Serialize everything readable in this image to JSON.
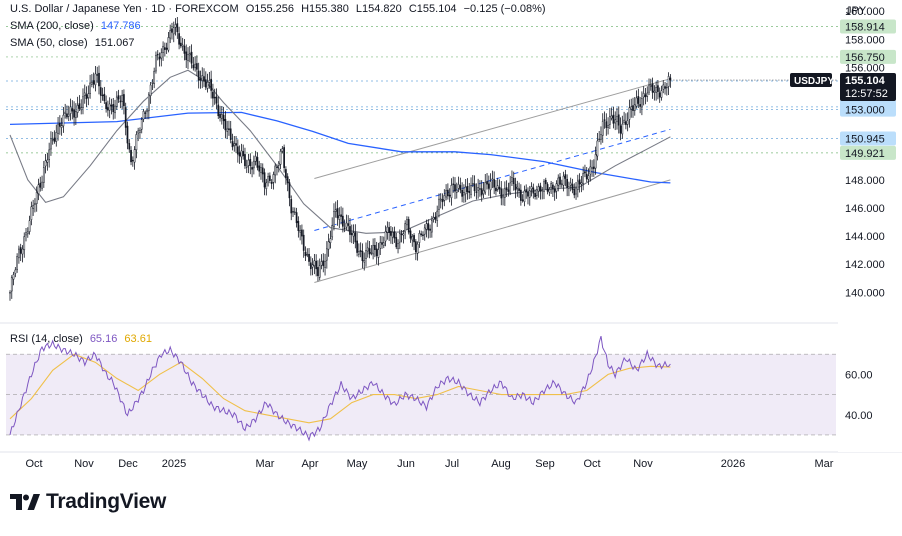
{
  "header": {
    "symbol_title": "U.S. Dollar / Japanese Yen · 1D · FOREXCOM",
    "ohlc": {
      "o": "O155.256",
      "h": "H155.380",
      "l": "L154.820",
      "c": "C155.104",
      "chg": "−0.125 (−0.08%)"
    },
    "sma200_label": "SMA (200, close)",
    "sma200_value": "147.786",
    "sma50_label": "SMA (50, close)",
    "sma50_value": "151.067",
    "currency": "JPY"
  },
  "price_tag": {
    "symbol": "USDJPY",
    "value": "155.104",
    "countdown": "12:57:52"
  },
  "rsi_header": {
    "label": "RSI (14, close)",
    "value": "65.16",
    "ma_value": "63.61"
  },
  "brand": {
    "name": "TradingView"
  },
  "colors": {
    "candle": "#131722",
    "sma200": "#2962ff",
    "sma50": "#787b86",
    "rsi": "#7e57c2",
    "rsi_ma": "#f0c04a",
    "rsi_band": "#ede7f6",
    "level_green": "#c8e6c9",
    "level_blue": "#bbdefb",
    "tag_dark": "#131722"
  },
  "chart_data": [
    {
      "type": "candlestick",
      "title": "U.S. Dollar / Japanese Yen · 1D · FOREXCOM",
      "ylim": [
        138.6,
        160.8
      ],
      "y_ticks": [
        140,
        142,
        144,
        146,
        148
      ],
      "x_ticks": [
        "Oct",
        "Nov",
        "Dec",
        "2025",
        "Mar",
        "Apr",
        "May",
        "Jun",
        "Jul",
        "Aug",
        "Sep",
        "Oct",
        "Nov",
        "2026",
        "Mar"
      ],
      "close_path": [
        [
          0,
          140.0
        ],
        [
          5,
          142.8
        ],
        [
          11,
          145.0
        ],
        [
          16,
          147.5
        ],
        [
          22,
          150.0
        ],
        [
          28,
          152.2
        ],
        [
          33,
          152.6
        ],
        [
          38,
          153.2
        ],
        [
          43,
          153.8
        ],
        [
          48,
          155.8
        ],
        [
          53,
          153.1
        ],
        [
          58,
          153.4
        ],
        [
          63,
          153.7
        ],
        [
          68,
          149.3
        ],
        [
          72,
          151.2
        ],
        [
          77,
          153.5
        ],
        [
          82,
          156.3
        ],
        [
          87,
          157.6
        ],
        [
          92,
          158.8
        ],
        [
          97,
          157.5
        ],
        [
          103,
          156.0
        ],
        [
          108,
          155.3
        ],
        [
          113,
          154.3
        ],
        [
          118,
          152.8
        ],
        [
          123,
          151.0
        ],
        [
          128,
          150.3
        ],
        [
          133,
          148.8
        ],
        [
          138,
          149.6
        ],
        [
          143,
          147.6
        ],
        [
          148,
          148.5
        ],
        [
          153,
          149.8
        ],
        [
          158,
          146.2
        ],
        [
          163,
          144.0
        ],
        [
          168,
          142.3
        ],
        [
          173,
          141.3
        ],
        [
          178,
          143.0
        ],
        [
          183,
          145.7
        ],
        [
          188,
          145.0
        ],
        [
          193,
          143.7
        ],
        [
          198,
          142.6
        ],
        [
          203,
          142.8
        ],
        [
          208,
          143.4
        ],
        [
          213,
          144.3
        ],
        [
          218,
          143.7
        ],
        [
          223,
          144.7
        ],
        [
          228,
          143.4
        ],
        [
          233,
          144.3
        ],
        [
          238,
          145.3
        ],
        [
          243,
          146.6
        ],
        [
          248,
          147.6
        ],
        [
          253,
          147.0
        ],
        [
          258,
          147.6
        ],
        [
          263,
          147.0
        ],
        [
          268,
          147.9
        ],
        [
          273,
          147.3
        ],
        [
          278,
          147.2
        ],
        [
          283,
          147.7
        ],
        [
          288,
          146.9
        ],
        [
          293,
          147.0
        ],
        [
          298,
          147.6
        ],
        [
          303,
          147.2
        ],
        [
          308,
          148.0
        ],
        [
          313,
          147.6
        ],
        [
          318,
          147.5
        ],
        [
          323,
          148.1
        ],
        [
          328,
          149.3
        ],
        [
          333,
          151.8
        ],
        [
          338,
          152.6
        ],
        [
          343,
          151.5
        ],
        [
          348,
          153.0
        ],
        [
          353,
          153.3
        ],
        [
          358,
          154.6
        ],
        [
          363,
          154.1
        ],
        [
          368,
          154.8
        ],
        [
          371,
          155.1
        ]
      ],
      "sma_200": {
        "name": "SMA (200, close)",
        "points": [
          [
            0,
            151.95
          ],
          [
            60,
            152.15
          ],
          [
            100,
            152.75
          ],
          [
            130,
            152.8
          ],
          [
            150,
            152.2
          ],
          [
            170,
            151.45
          ],
          [
            190,
            150.6
          ],
          [
            220,
            150.0
          ],
          [
            250,
            150.0
          ],
          [
            270,
            149.8
          ],
          [
            300,
            149.3
          ],
          [
            330,
            148.5
          ],
          [
            360,
            147.85
          ],
          [
            371,
            147.786
          ]
        ]
      },
      "sma_50": {
        "name": "SMA (50, close)",
        "points": [
          [
            0,
            151.2
          ],
          [
            10,
            148.0
          ],
          [
            20,
            146.4
          ],
          [
            30,
            146.8
          ],
          [
            45,
            149.0
          ],
          [
            60,
            151.5
          ],
          [
            75,
            153.6
          ],
          [
            90,
            155.3
          ],
          [
            100,
            155.8
          ],
          [
            110,
            155.0
          ],
          [
            120,
            153.5
          ],
          [
            135,
            151.5
          ],
          [
            150,
            149.0
          ],
          [
            165,
            146.3
          ],
          [
            180,
            144.6
          ],
          [
            200,
            144.2
          ],
          [
            220,
            144.3
          ],
          [
            240,
            145.4
          ],
          [
            260,
            146.5
          ],
          [
            280,
            147.0
          ],
          [
            300,
            147.3
          ],
          [
            320,
            147.5
          ],
          [
            340,
            149.0
          ],
          [
            355,
            150.0
          ],
          [
            371,
            151.067
          ]
        ]
      },
      "channel_upper": [
        [
          171,
          148.1
        ],
        [
          371,
          155.2
        ]
      ],
      "channel_lower": [
        [
          171,
          140.7
        ],
        [
          371,
          148.0
        ]
      ],
      "channel_mid": [
        [
          171,
          144.4
        ],
        [
          371,
          151.6
        ]
      ],
      "levels": [
        {
          "label": "158.914",
          "style": "green"
        },
        {
          "label": "156.750",
          "style": "green"
        },
        {
          "label": "155.038",
          "style": "blue"
        },
        {
          "label": "153.194",
          "style": "blue"
        },
        {
          "label": "153.000",
          "style": "blue"
        },
        {
          "label": "150.945",
          "style": "blue"
        },
        {
          "label": "149.921",
          "style": "green"
        }
      ],
      "axis_values": [
        {
          "label": "160.000"
        },
        {
          "label": "158.000"
        },
        {
          "label": "156.000"
        }
      ]
    },
    {
      "type": "line",
      "title": "RSI (14, close)",
      "ylim": [
        27,
        80
      ],
      "y_ticks": [
        40,
        60
      ],
      "band": [
        30,
        70
      ],
      "rsi_path": [
        [
          0,
          30
        ],
        [
          6,
          45
        ],
        [
          12,
          60
        ],
        [
          18,
          73
        ],
        [
          24,
          75
        ],
        [
          30,
          72
        ],
        [
          36,
          70
        ],
        [
          42,
          66
        ],
        [
          48,
          70
        ],
        [
          54,
          60
        ],
        [
          58,
          56
        ],
        [
          62,
          48
        ],
        [
          66,
          40
        ],
        [
          70,
          45
        ],
        [
          75,
          52
        ],
        [
          80,
          62
        ],
        [
          85,
          70
        ],
        [
          90,
          72
        ],
        [
          96,
          66
        ],
        [
          102,
          56
        ],
        [
          108,
          50
        ],
        [
          114,
          44
        ],
        [
          120,
          42
        ],
        [
          126,
          40
        ],
        [
          132,
          33
        ],
        [
          138,
          38
        ],
        [
          144,
          46
        ],
        [
          150,
          40
        ],
        [
          156,
          36
        ],
        [
          162,
          33
        ],
        [
          168,
          29
        ],
        [
          174,
          33
        ],
        [
          180,
          45
        ],
        [
          186,
          55
        ],
        [
          192,
          48
        ],
        [
          198,
          52
        ],
        [
          204,
          56
        ],
        [
          210,
          50
        ],
        [
          216,
          45
        ],
        [
          222,
          50
        ],
        [
          228,
          48
        ],
        [
          234,
          44
        ],
        [
          240,
          54
        ],
        [
          246,
          58
        ],
        [
          252,
          56
        ],
        [
          258,
          50
        ],
        [
          264,
          46
        ],
        [
          270,
          52
        ],
        [
          276,
          56
        ],
        [
          282,
          48
        ],
        [
          288,
          50
        ],
        [
          294,
          46
        ],
        [
          300,
          52
        ],
        [
          306,
          56
        ],
        [
          312,
          50
        ],
        [
          318,
          46
        ],
        [
          324,
          56
        ],
        [
          328,
          66
        ],
        [
          332,
          78
        ],
        [
          336,
          65
        ],
        [
          340,
          60
        ],
        [
          346,
          68
        ],
        [
          352,
          62
        ],
        [
          358,
          70
        ],
        [
          364,
          64
        ],
        [
          371,
          65.16
        ]
      ],
      "rsi_ma_path": [
        [
          0,
          38
        ],
        [
          12,
          48
        ],
        [
          24,
          62
        ],
        [
          36,
          70
        ],
        [
          48,
          66
        ],
        [
          60,
          58
        ],
        [
          72,
          52
        ],
        [
          84,
          60
        ],
        [
          96,
          66
        ],
        [
          108,
          58
        ],
        [
          120,
          48
        ],
        [
          132,
          42
        ],
        [
          144,
          40
        ],
        [
          156,
          38
        ],
        [
          168,
          36
        ],
        [
          180,
          38
        ],
        [
          192,
          46
        ],
        [
          204,
          50
        ],
        [
          216,
          50
        ],
        [
          228,
          48
        ],
        [
          240,
          50
        ],
        [
          252,
          54
        ],
        [
          264,
          52
        ],
        [
          276,
          50
        ],
        [
          288,
          50
        ],
        [
          300,
          50
        ],
        [
          312,
          50
        ],
        [
          324,
          52
        ],
        [
          336,
          60
        ],
        [
          348,
          63
        ],
        [
          360,
          64
        ],
        [
          371,
          63.61
        ]
      ]
    }
  ]
}
